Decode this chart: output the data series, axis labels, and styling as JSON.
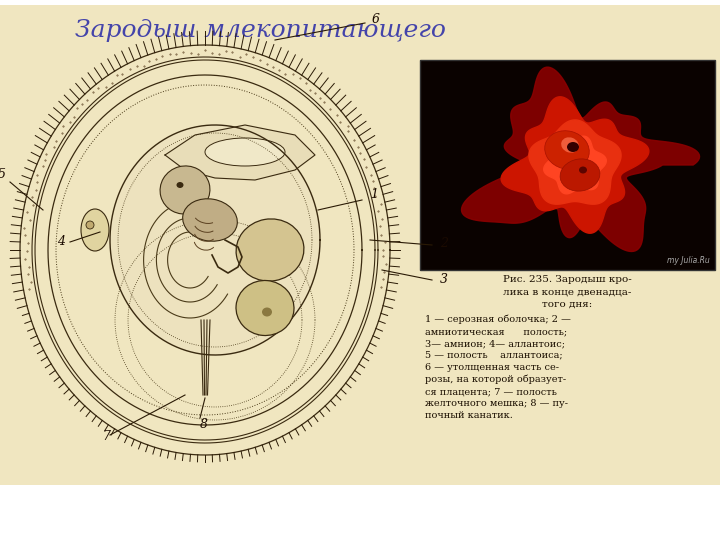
{
  "title": "Зародыш млекопитающего",
  "title_color": "#4444AA",
  "title_fontsize": 18,
  "bg_color": "#FFFFFF",
  "panel_bg": "#F0E6C0",
  "caption_title": "Рис. 235. Зародыш кро-\nлика в конце двенадца-\nтого дня:",
  "caption_body": "1 — серозная оболочка; 2 —\nамниотическая      полость;\n3— амнион; 4— аллантоис;\n5 — полость    аллантоиса;\n6 — утолщенная часть се-\nрозы, на которой образует-\nся плацента; 7 — полость\nжелточного мешка; 8 — пу-\nпочный канатик.",
  "photo_dark": "#080300",
  "watermark": "my Julia.Ru"
}
